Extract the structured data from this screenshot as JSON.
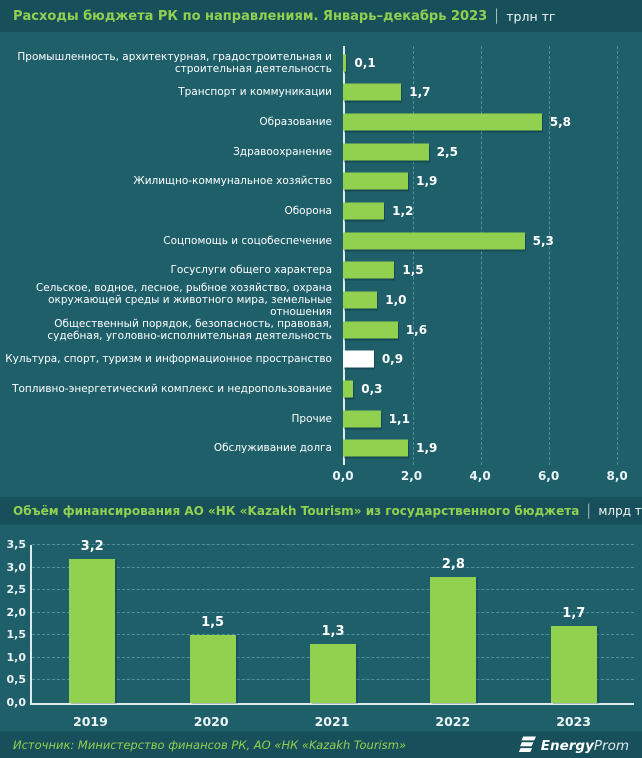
{
  "header1": {
    "title": "Расходы бюджета РК по направлениям. Январь–декабрь 2023",
    "separator": "|",
    "unit": "трлн тг"
  },
  "header2": {
    "title": "Объём финансирования АО «НК «Kazakh Tourism» из государственного бюджета",
    "separator": "|",
    "unit": "млрд тг"
  },
  "footer": {
    "source": "Источник: Министерство финансов РК, АО «НК «Kazakh Tourism»",
    "logo_energy": "Energy",
    "logo_prom": "Prom"
  },
  "colors": {
    "background": "#1E5F6A",
    "band": "#174F5B",
    "bar_green": "#92D050",
    "highlight_white": "#FFFFFF",
    "accent_text_green": "#92D050",
    "text_white": "#FFFFFF",
    "grid_dash": "#74BCCB"
  },
  "chart_data": [
    {
      "type": "bar",
      "orientation": "horizontal",
      "title": "Расходы бюджета РК по направлениям. Январь–декабрь 2023",
      "unit": "трлн тг",
      "categories": [
        "Промышленность, архитектурная, градостроительная и строительная деятельность",
        "Транспорт и коммуникации",
        "Образование",
        "Здравоохранение",
        "Жилищно-коммунальное хозяйство",
        "Оборона",
        "Соцпомощь и соцобеспечение",
        "Госуслуги общего характера",
        "Сельское, водное, лесное, рыбное хозяйство, охрана окружающей среды и животного мира, земельные отношения",
        "Общественный порядок, безопасность, правовая, судебная, уголовно-исполнительная деятельность",
        "Культура, спорт, туризм и информационное пространство",
        "Топливно-энергетический комплекс и недропользование",
        "Прочие",
        "Обслуживание долга"
      ],
      "values": [
        0.1,
        1.7,
        5.8,
        2.5,
        1.9,
        1.2,
        5.3,
        1.5,
        1.0,
        1.6,
        0.9,
        0.3,
        1.1,
        1.9
      ],
      "value_labels": [
        "0,1",
        "1,7",
        "5,8",
        "2,5",
        "1,9",
        "1,2",
        "5,3",
        "1,5",
        "1,0",
        "1,6",
        "0,9",
        "0,3",
        "1,1",
        "1,9"
      ],
      "highlight_index": 10,
      "bar_color": "#92D050",
      "highlight_color": "#FFFFFF",
      "xlim": [
        0,
        8.58
      ],
      "x_ticks": [
        {
          "v": 0,
          "label": "0,0"
        },
        {
          "v": 2,
          "label": "2,0"
        },
        {
          "v": 4,
          "label": "4,0"
        },
        {
          "v": 6,
          "label": "6,0"
        },
        {
          "v": 8,
          "label": "8,0"
        }
      ],
      "grid": "vertical-dashed",
      "legend": "none"
    },
    {
      "type": "bar",
      "orientation": "vertical",
      "title": "Объём финансирования АО «НК «Kazakh Tourism» из государственного бюджета",
      "unit": "млрд тг",
      "categories": [
        "2019",
        "2020",
        "2021",
        "2022",
        "2023"
      ],
      "values": [
        3.2,
        1.5,
        1.3,
        2.8,
        1.7
      ],
      "value_labels": [
        "3,2",
        "1,5",
        "1,3",
        "2,8",
        "1,7"
      ],
      "bar_color": "#92D050",
      "ylim": [
        0,
        3.5
      ],
      "y_ticks": [
        {
          "v": 0,
          "label": "0,0"
        },
        {
          "v": 0.5,
          "label": "0,5"
        },
        {
          "v": 1,
          "label": "1,0"
        },
        {
          "v": 1.5,
          "label": "1,5"
        },
        {
          "v": 2,
          "label": "2,0"
        },
        {
          "v": 2.5,
          "label": "2,5"
        },
        {
          "v": 3,
          "label": "3,0"
        },
        {
          "v": 3.5,
          "label": "3,5"
        }
      ],
      "grid": "horizontal-dashed",
      "legend": "none"
    }
  ]
}
